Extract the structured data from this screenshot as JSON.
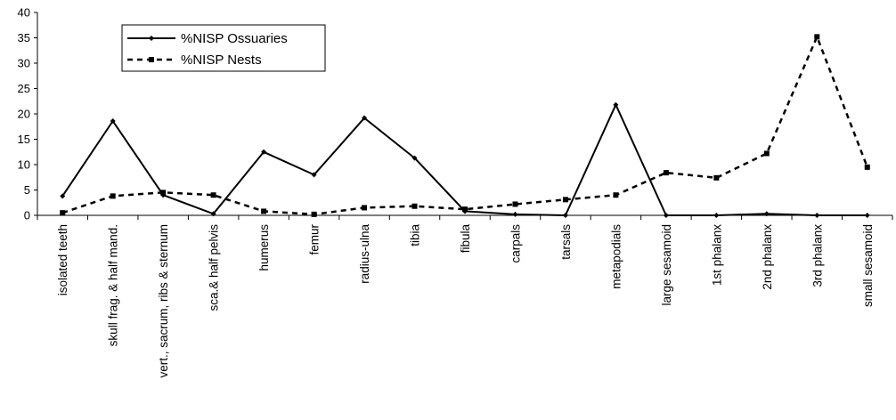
{
  "chart_data": {
    "type": "line",
    "categories": [
      "isolated teeth",
      "skull frag. & half mand.",
      "vert., sacrum, ribs & sternum",
      "sca.& half pelvis",
      "humerus",
      "femur",
      "radius-ulna",
      "tibia",
      "fibula",
      "carpals",
      "tarsals",
      "metapodials",
      "large sesamoid",
      "1st phalanx",
      "2nd phalanx",
      "3rd phalanx",
      "small sesamoid"
    ],
    "series": [
      {
        "name": "%NISP Ossuaries",
        "style": "solid",
        "marker": "diamond",
        "color": "#000000",
        "values": [
          3.8,
          18.6,
          4.0,
          0.3,
          12.5,
          8.0,
          19.2,
          11.3,
          0.8,
          0.2,
          0.0,
          21.8,
          0.0,
          0.0,
          0.3,
          0.0,
          0.0
        ]
      },
      {
        "name": "%NISP Nests",
        "style": "dashed",
        "marker": "square",
        "color": "#000000",
        "values": [
          0.5,
          3.8,
          4.5,
          4.0,
          0.8,
          0.2,
          1.5,
          1.8,
          1.2,
          2.2,
          3.1,
          4.0,
          8.4,
          7.4,
          12.2,
          35.2,
          9.5
        ]
      }
    ],
    "ylim": [
      0,
      40
    ],
    "yticks": [
      0,
      5,
      10,
      15,
      20,
      25,
      30,
      35,
      40
    ],
    "grid": false,
    "legend": {
      "placement": "top-left"
    }
  }
}
